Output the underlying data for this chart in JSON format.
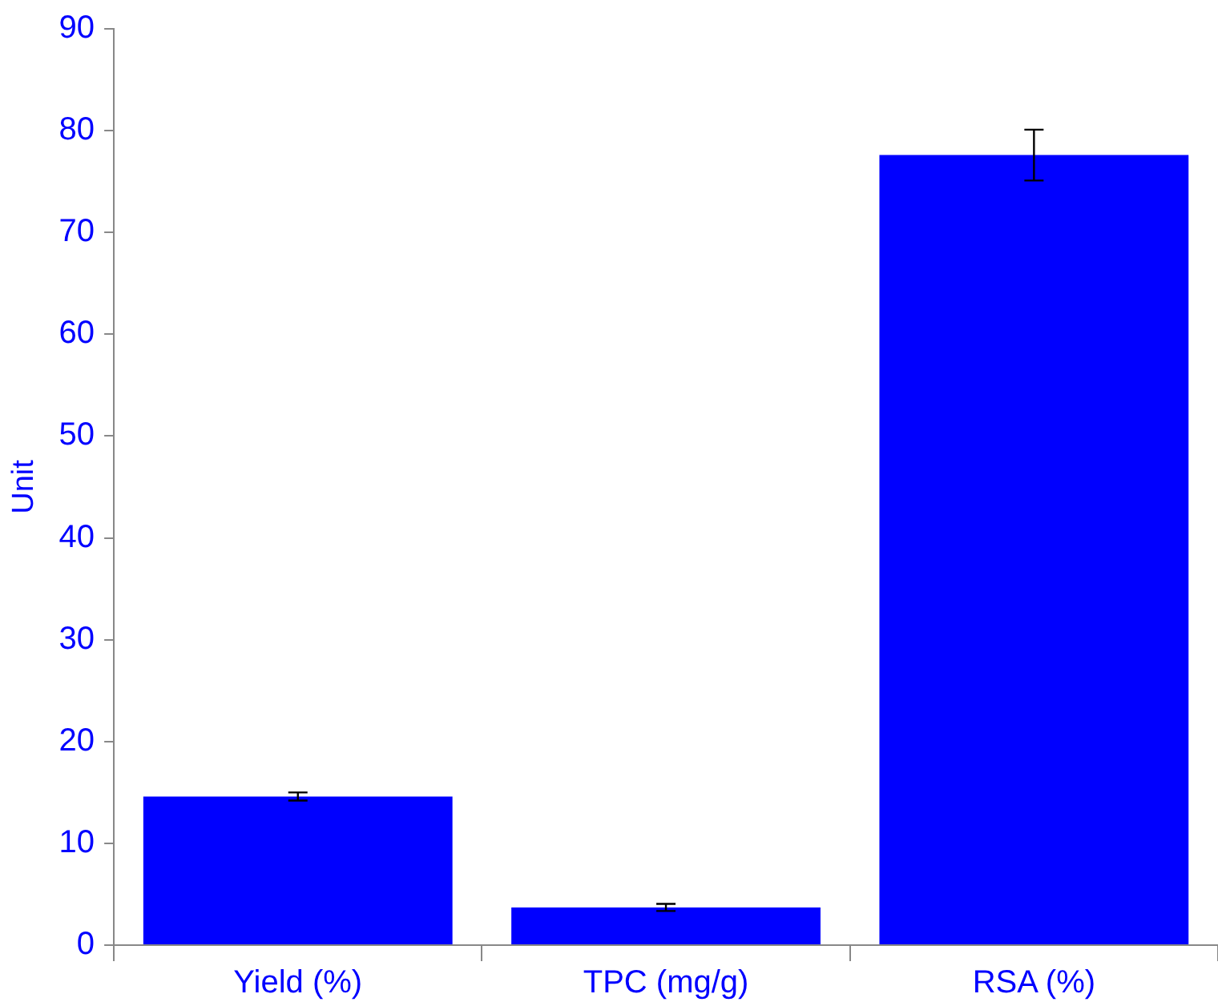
{
  "chart_data": {
    "type": "bar",
    "ylabel": "Unit",
    "categories": [
      "Yield (%)",
      "TPC (mg/g)",
      "RSA (%)"
    ],
    "values": [
      14.6,
      3.7,
      77.6
    ],
    "errors": [
      0.4,
      0.35,
      2.5
    ],
    "color": "#0000ff",
    "ylim": [
      0,
      90
    ],
    "yticks": [
      0,
      10,
      20,
      30,
      40,
      50,
      60,
      70,
      80,
      90
    ],
    "grid": false,
    "legend": false
  }
}
